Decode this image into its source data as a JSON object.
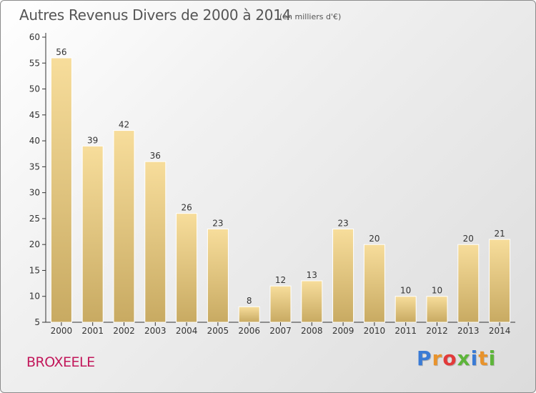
{
  "header": {
    "title": "Autres Revenus Divers de 2000 à 2014",
    "subtitle": "(en milliers d'€)"
  },
  "footer": {
    "place": "BROXEELE",
    "logo": [
      "P",
      "r",
      "o",
      "x",
      "i",
      "t",
      "i"
    ],
    "logo_colors": [
      "#3a7bd5",
      "#e8932c",
      "#e23a3a",
      "#5db53a",
      "#3a7bd5",
      "#e8932c",
      "#5db53a"
    ]
  },
  "colors": {
    "bar_top": "#f7dd9b",
    "bar_bottom": "#c8aa62",
    "axis": "#333333",
    "label": "#333333"
  },
  "chart_data": {
    "type": "bar",
    "title": "Autres Revenus Divers de 2000 à 2014",
    "subtitle": "(en milliers d'€)",
    "categories": [
      "2000",
      "2001",
      "2002",
      "2003",
      "2004",
      "2005",
      "2006",
      "2007",
      "2008",
      "2009",
      "2010",
      "2011",
      "2012",
      "2013",
      "2014"
    ],
    "values": [
      56,
      39,
      42,
      36,
      26,
      23,
      8,
      12,
      13,
      23,
      20,
      10,
      10,
      20,
      21
    ],
    "ylim": [
      5,
      60
    ],
    "yticks": [
      5,
      10,
      15,
      20,
      25,
      30,
      35,
      40,
      45,
      50,
      55,
      60
    ],
    "grid": false,
    "data_labels": true
  }
}
